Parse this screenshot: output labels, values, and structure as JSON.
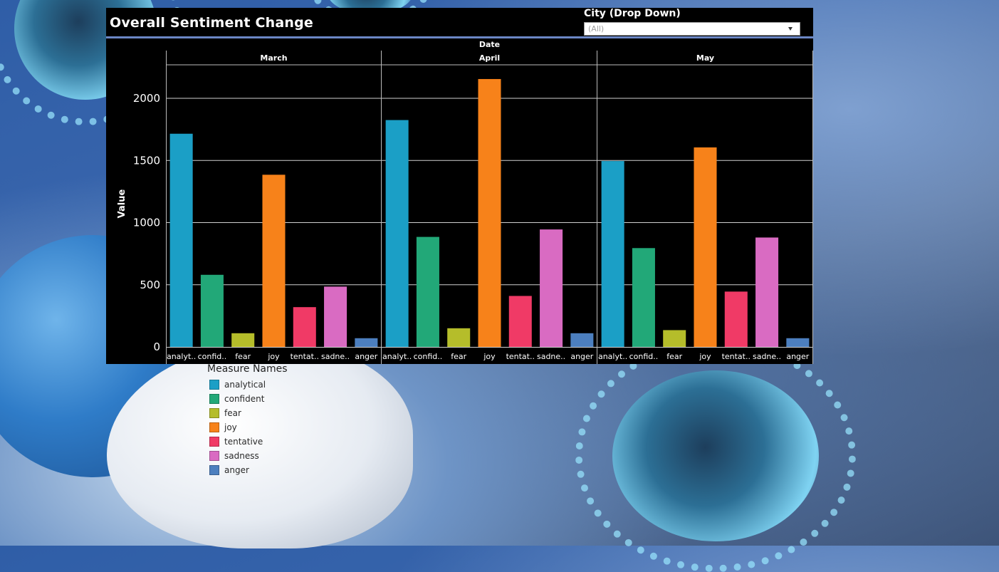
{
  "dashboard": {
    "title": "Overall Sentiment Change",
    "filter": {
      "label": "City (Drop Down)",
      "value": "(All)"
    }
  },
  "legend": {
    "title": "Measure Names",
    "items": [
      {
        "label": "analytical",
        "color": "#1b9fc6"
      },
      {
        "label": "confident",
        "color": "#22a878"
      },
      {
        "label": "fear",
        "color": "#b5bd2a"
      },
      {
        "label": "joy",
        "color": "#f7821a"
      },
      {
        "label": "tentative",
        "color": "#f03a66"
      },
      {
        "label": "sadness",
        "color": "#d96bc2"
      },
      {
        "label": "anger",
        "color": "#4c7fbf"
      }
    ]
  },
  "chart_data": {
    "type": "bar",
    "xlabel": "Date",
    "ylabel": "Value",
    "ylim": [
      0,
      2400
    ],
    "yticks": [
      0,
      500,
      1000,
      1500,
      2000
    ],
    "panels": [
      "March",
      "April",
      "May"
    ],
    "categories": [
      "analytical",
      "confident",
      "fear",
      "joy",
      "tentative",
      "sadness",
      "anger"
    ],
    "category_tick_labels": [
      "analyt..",
      "confid..",
      "fear",
      "joy",
      "tentat..",
      "sadne..",
      "anger"
    ],
    "series": [
      {
        "panel": "March",
        "values": [
          1715,
          580,
          110,
          1385,
          320,
          485,
          70
        ]
      },
      {
        "panel": "April",
        "values": [
          1825,
          885,
          150,
          2155,
          410,
          945,
          110
        ]
      },
      {
        "panel": "May",
        "values": [
          1495,
          795,
          135,
          1605,
          445,
          880,
          70
        ]
      }
    ],
    "grid": true
  }
}
